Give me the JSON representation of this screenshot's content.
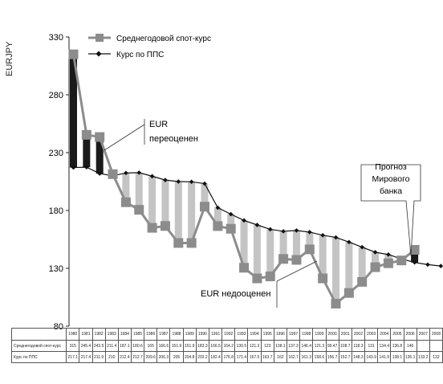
{
  "chart_data": {
    "type": "bar+line",
    "ylabel": "EURJPY",
    "ylim": [
      80,
      330
    ],
    "yticks": [
      80,
      130,
      180,
      230,
      280,
      330
    ],
    "grid": false,
    "legend_position": "top-left",
    "categories": [
      "1980",
      "1981",
      "1982",
      "1983",
      "1984",
      "1985",
      "1986",
      "1987",
      "1988",
      "1989",
      "1990",
      "1991",
      "1992",
      "1993",
      "1994",
      "1995",
      "1996",
      "1997",
      "1998",
      "1999",
      "2000",
      "2001",
      "2002",
      "2003",
      "2004",
      "2005",
      "2006",
      "2007",
      "2008"
    ],
    "series": [
      {
        "name": "Среднегодовой спот-курс",
        "row_label": "Среднегодовой спот-курс",
        "values": [
          315,
          245.4,
          243.5,
          211.4,
          187.1,
          180.6,
          165,
          166.6,
          151.9,
          151.9,
          183.3,
          166.5,
          164.2,
          130.5,
          121.3,
          123,
          138.1,
          137.3,
          146.4,
          121.3,
          99.47,
          108.7,
          118.3,
          131,
          134.4,
          136.8,
          146,
          null,
          null
        ],
        "display": [
          "315",
          "245.4",
          "243.5",
          "211.4",
          "187.1",
          "180.6",
          "165",
          "166.6",
          "151.9",
          "151.9",
          "183.3",
          "166.5",
          "164.2",
          "130.5",
          "121.3",
          "123",
          "138.1",
          "137.3",
          "146.4",
          "121.3",
          "99.47",
          "108.7",
          "118.3",
          "131",
          "134.4",
          "136.8",
          "146",
          "",
          ""
        ]
      },
      {
        "name": "Курс по ППС",
        "row_label": "Курс по ППС",
        "values": [
          217.1,
          217.4,
          211.9,
          210,
          212.4,
          212.7,
          209.6,
          206.3,
          205,
          204.8,
          203.2,
          182.4,
          176.8,
          171.4,
          167.5,
          163.7,
          162,
          162.7,
          161.3,
          158.6,
          156.7,
          152.7,
          148.3,
          143.9,
          141.9,
          138.1,
          135.1,
          133.2,
          132
        ],
        "display": [
          "217.1",
          "217.4",
          "211.9",
          "210",
          "212.4",
          "212.7",
          "209.6",
          "206.3",
          "205",
          "204.8",
          "203.2",
          "182.4",
          "176.8",
          "171.4",
          "167.5",
          "163.7",
          "162",
          "162.7",
          "161.3",
          "158.6",
          "156.7",
          "152.7",
          "148.3",
          "143.9",
          "141.9",
          "138.1",
          "135.1",
          "133.2",
          "132"
        ]
      }
    ],
    "colors": {
      "spot_line": "#8c8c8c",
      "ppp_line": "#111111",
      "overvalued_bar": "#1a1a1a",
      "undervalued_bar": "#c4c4c4"
    },
    "annotations": [
      {
        "lines": [
          "EUR",
          "переоценен"
        ]
      },
      {
        "lines": [
          "EUR недооценен"
        ]
      },
      {
        "lines": [
          "Прогноз",
          "Мирового",
          "банка"
        ]
      }
    ]
  }
}
